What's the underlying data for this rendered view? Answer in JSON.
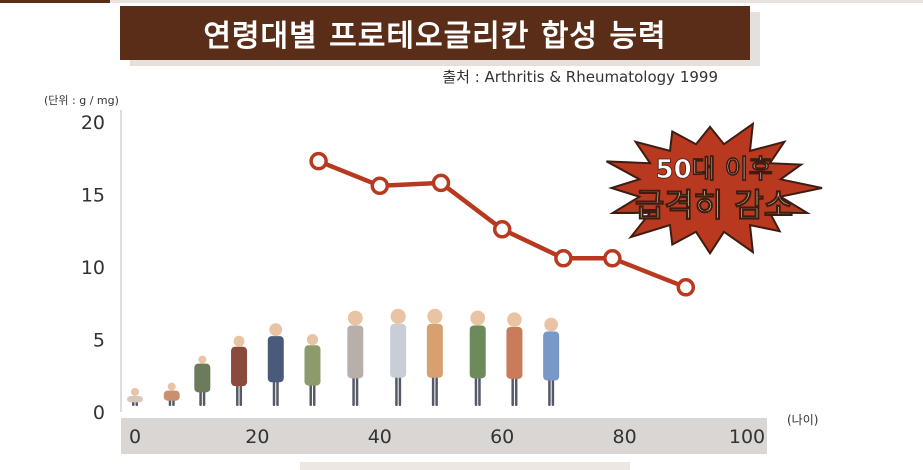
{
  "title": "연령대별 프로테오글리칸 합성 능력",
  "source": "출처 : Arthritis & Rheumatology 1999",
  "badge": {
    "line1": "50대 이후",
    "line2": "급격히 감소"
  },
  "colors": {
    "title_bg": "#5a2d18",
    "line": "#b8391f",
    "badge_fill": "#b8391f",
    "badge_text_accent": "#f6e2b3",
    "axis_band": "#d9d6d4"
  },
  "chart_data": {
    "type": "line",
    "ylabel": "(단위 : g / mg)",
    "xlabel": "(나이)",
    "xlim": [
      0,
      100
    ],
    "ylim": [
      0,
      20
    ],
    "x_ticks": [
      "0",
      "20",
      "40",
      "60",
      "80",
      "100"
    ],
    "y_ticks": [
      "0",
      "5",
      "10",
      "15",
      "20"
    ],
    "grid": false,
    "series": [
      {
        "x": [
          30,
          40,
          50,
          60,
          70,
          78,
          90
        ],
        "y": [
          17.3,
          15.6,
          15.8,
          12.6,
          10.6,
          10.6,
          8.6
        ]
      }
    ]
  }
}
